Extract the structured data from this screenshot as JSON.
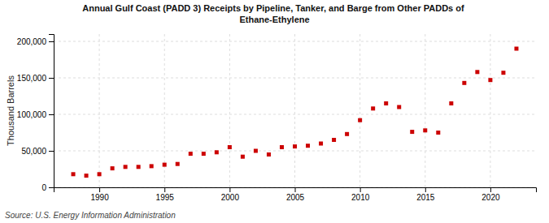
{
  "chart_data": {
    "type": "scatter",
    "title": "Annual Gulf Coast (PADD 3) Receipts by Pipeline, Tanker, and Barge from Other PADDs of\nEthane-Ethylene",
    "ylabel": "Thousand Barrels",
    "source": "Source: U.S. Energy Information Administration",
    "x": [
      1988,
      1989,
      1990,
      1991,
      1992,
      1993,
      1994,
      1995,
      1996,
      1997,
      1998,
      1999,
      2000,
      2001,
      2002,
      2003,
      2004,
      2005,
      2006,
      2007,
      2008,
      2009,
      2010,
      2011,
      2012,
      2013,
      2014,
      2015,
      2016,
      2017,
      2018,
      2019,
      2020,
      2021,
      2022
    ],
    "values": [
      18000,
      16000,
      18000,
      26000,
      28000,
      28000,
      29000,
      31000,
      32000,
      46000,
      46000,
      48000,
      55000,
      42000,
      50000,
      45000,
      55000,
      56000,
      57000,
      60000,
      65000,
      73000,
      92000,
      108000,
      115000,
      110000,
      76000,
      78000,
      75000,
      115000,
      143000,
      158000,
      147000,
      157000,
      190000
    ],
    "color": "#cc0000",
    "marker": "square",
    "xlim": [
      1986.5,
      2023.5
    ],
    "ylim": [
      0,
      210000
    ],
    "xticks": [
      1990,
      1995,
      2000,
      2005,
      2010,
      2015,
      2020
    ],
    "yticks": [
      0,
      {
        "value": 50000,
        "label": "50,000"
      },
      {
        "value": 100000,
        "label": "100,000"
      },
      {
        "value": 150000,
        "label": "150,000"
      },
      {
        "value": 200000,
        "label": "200,000"
      }
    ],
    "grid": true
  }
}
